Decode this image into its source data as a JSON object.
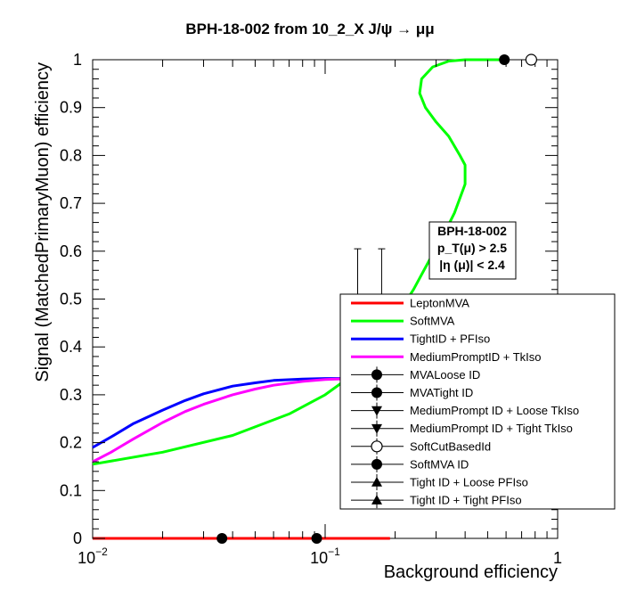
{
  "chart_data": {
    "type": "line",
    "title": "BPH-18-002 from 10_2_X J/ψ → μμ",
    "xlabel": "Background efficiency",
    "ylabel": "Signal (MatchedPrimaryMuon) efficiency",
    "x_scale": "log",
    "xlim": [
      0.01,
      1
    ],
    "ylim": [
      0,
      1
    ],
    "x_ticks": [
      {
        "value": 0.01,
        "base": "10",
        "exp": "−2"
      },
      {
        "value": 0.1,
        "base": "10",
        "exp": "−1"
      },
      {
        "value": 1,
        "base": "1",
        "exp": ""
      }
    ],
    "y_ticks": [
      {
        "value": 0,
        "label": "0"
      },
      {
        "value": 0.1,
        "label": "0.1"
      },
      {
        "value": 0.2,
        "label": "0.2"
      },
      {
        "value": 0.3,
        "label": "0.3"
      },
      {
        "value": 0.4,
        "label": "0.4"
      },
      {
        "value": 0.5,
        "label": "0.5"
      },
      {
        "value": 0.6,
        "label": "0.6"
      },
      {
        "value": 0.7,
        "label": "0.7"
      },
      {
        "value": 0.8,
        "label": "0.8"
      },
      {
        "value": 0.9,
        "label": "0.9"
      },
      {
        "value": 1,
        "label": "1"
      }
    ],
    "grid": false,
    "legend_position": "right",
    "info_box": {
      "line1": "BPH-18-002",
      "line2": "p_T(μ) > 2.5",
      "line3": "|η (μ)| < 2.4"
    },
    "series": [
      {
        "name": "LeptonMVA",
        "kind": "line",
        "color": "#ff0000",
        "x": [
          0.01,
          0.02,
          0.05,
          0.1,
          0.19
        ],
        "y": [
          0,
          0,
          0,
          0,
          0
        ]
      },
      {
        "name": "SoftMVA",
        "kind": "line",
        "color": "#00ff00",
        "x": [
          0.01,
          0.02,
          0.04,
          0.07,
          0.1,
          0.13,
          0.16,
          0.2,
          0.24,
          0.28,
          0.32,
          0.36,
          0.4,
          0.4,
          0.38,
          0.34,
          0.3,
          0.27,
          0.255,
          0.26,
          0.29,
          0.34,
          0.4,
          0.6
        ],
        "y": [
          0.155,
          0.18,
          0.215,
          0.26,
          0.3,
          0.34,
          0.39,
          0.46,
          0.52,
          0.58,
          0.63,
          0.68,
          0.74,
          0.78,
          0.8,
          0.84,
          0.87,
          0.9,
          0.93,
          0.96,
          0.985,
          0.997,
          1.0,
          1.0
        ]
      },
      {
        "name": "TightID + PFIso",
        "kind": "line",
        "color": "#0000ff",
        "x": [
          0.01,
          0.012,
          0.015,
          0.02,
          0.025,
          0.03,
          0.04,
          0.05,
          0.06,
          0.08,
          0.1,
          0.13
        ],
        "y": [
          0.19,
          0.212,
          0.24,
          0.268,
          0.288,
          0.302,
          0.318,
          0.325,
          0.33,
          0.333,
          0.334,
          0.334
        ]
      },
      {
        "name": "MediumPromptID + TkIso",
        "kind": "line",
        "color": "#ff00ff",
        "x": [
          0.01,
          0.012,
          0.015,
          0.02,
          0.025,
          0.03,
          0.04,
          0.05,
          0.06,
          0.08,
          0.1,
          0.13
        ],
        "y": [
          0.16,
          0.18,
          0.208,
          0.242,
          0.265,
          0.28,
          0.3,
          0.312,
          0.32,
          0.328,
          0.332,
          0.334
        ]
      },
      {
        "name": "MVALoose ID",
        "kind": "marker",
        "marker": "circle",
        "x": [
          0.036
        ],
        "y": [
          0
        ]
      },
      {
        "name": "MVATight ID",
        "kind": "marker",
        "marker": "circle",
        "x": [
          0.092
        ],
        "y": [
          0
        ]
      },
      {
        "name": "MediumPrompt ID + Loose TkIso",
        "kind": "marker",
        "marker": "triangle-down",
        "x": [],
        "y": []
      },
      {
        "name": "MediumPrompt ID + Tight TkIso",
        "kind": "marker",
        "marker": "triangle-down",
        "x": [],
        "y": []
      },
      {
        "name": "SoftCutBasedId",
        "kind": "marker",
        "marker": "open-circle",
        "x": [
          0.77
        ],
        "y": [
          1.0
        ]
      },
      {
        "name": "SoftMVA ID",
        "kind": "marker",
        "marker": "circle",
        "x": [
          0.59
        ],
        "y": [
          1.0
        ]
      },
      {
        "name": "Tight ID + Loose PFIso",
        "kind": "marker",
        "marker": "triangle-up",
        "x": [],
        "y": []
      },
      {
        "name": "Tight ID + Tight PFIso",
        "kind": "marker",
        "marker": "triangle-up",
        "x": [],
        "y": []
      }
    ],
    "error_bars": [
      {
        "x": 0.138,
        "y_low": 0.5,
        "y_high": 0.605
      },
      {
        "x": 0.175,
        "y_low": 0.5,
        "y_high": 0.605
      }
    ]
  }
}
